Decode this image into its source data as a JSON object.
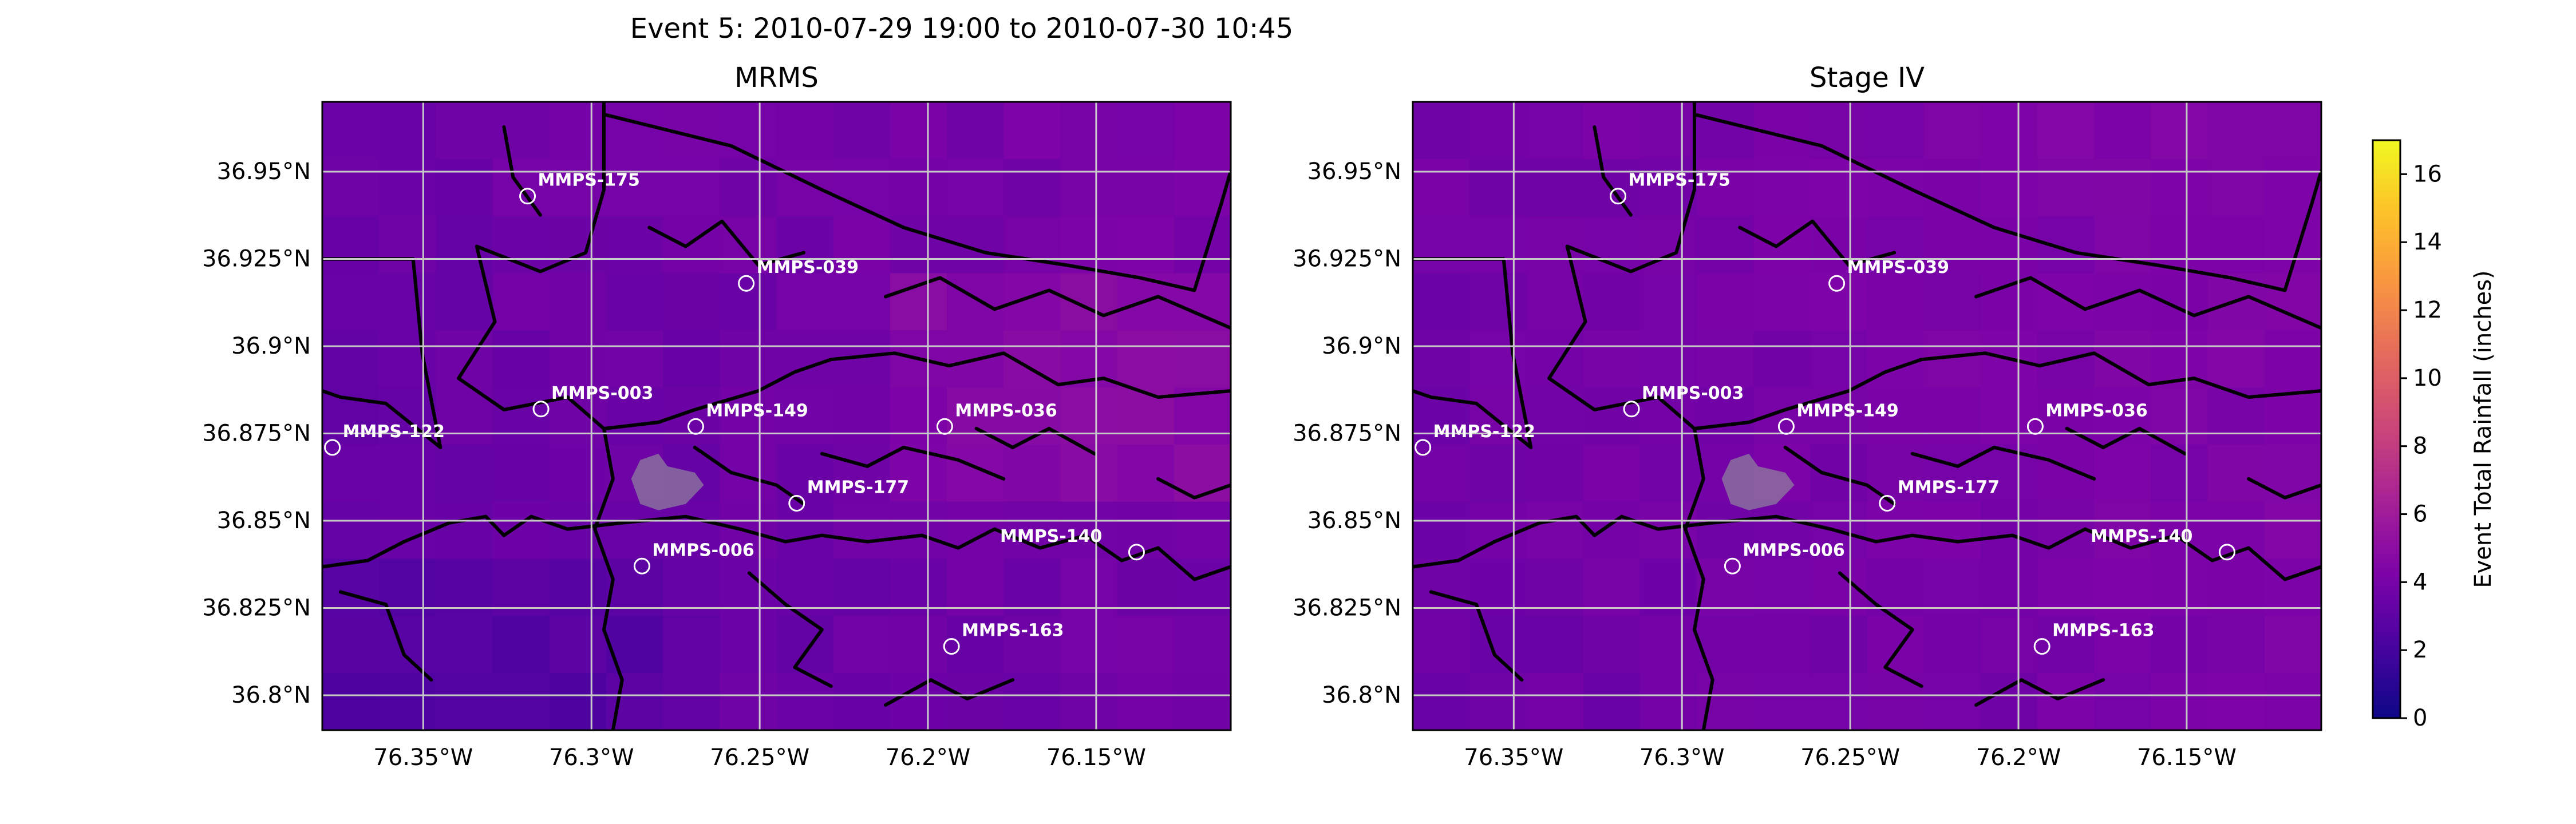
{
  "figure": {
    "title": "Event 5: 2010-07-29 19:00 to 2010-07-30 10:45"
  },
  "map": {
    "lon_range": [
      -76.38,
      -76.11
    ],
    "lat_range": [
      36.79,
      36.97
    ],
    "gridlines": true,
    "x_ticks": [
      {
        "value": -76.35,
        "label": "76.35°W"
      },
      {
        "value": -76.3,
        "label": "76.3°W"
      },
      {
        "value": -76.25,
        "label": "76.25°W"
      },
      {
        "value": -76.2,
        "label": "76.2°W"
      },
      {
        "value": -76.15,
        "label": "76.15°W"
      }
    ],
    "y_ticks": [
      {
        "value": 36.95,
        "label": "36.95°N"
      },
      {
        "value": 36.925,
        "label": "36.925°N"
      },
      {
        "value": 36.9,
        "label": "36.9°N"
      },
      {
        "value": 36.875,
        "label": "36.875°N"
      },
      {
        "value": 36.85,
        "label": "36.85°N"
      },
      {
        "value": 36.825,
        "label": "36.825°N"
      },
      {
        "value": 36.8,
        "label": "36.8°N"
      }
    ]
  },
  "panels": [
    {
      "title": "MRMS",
      "background_inches": 3.6
    },
    {
      "title": "Stage IV",
      "background_inches": 3.9
    }
  ],
  "gauges": [
    {
      "label": "MMPS-175",
      "lon": -76.319,
      "lat": 36.943,
      "label_side": "right"
    },
    {
      "label": "MMPS-039",
      "lon": -76.254,
      "lat": 36.918,
      "label_side": "right"
    },
    {
      "label": "MMPS-003",
      "lon": -76.315,
      "lat": 36.882,
      "label_side": "right"
    },
    {
      "label": "MMPS-149",
      "lon": -76.269,
      "lat": 36.877,
      "label_side": "right"
    },
    {
      "label": "MMPS-036",
      "lon": -76.195,
      "lat": 36.877,
      "label_side": "right"
    },
    {
      "label": "MMPS-122",
      "lon": -76.377,
      "lat": 36.871,
      "label_side": "right"
    },
    {
      "label": "MMPS-177",
      "lon": -76.239,
      "lat": 36.855,
      "label_side": "right"
    },
    {
      "label": "MMPS-140",
      "lon": -76.138,
      "lat": 36.841,
      "label_side": "left"
    },
    {
      "label": "MMPS-006",
      "lon": -76.285,
      "lat": 36.837,
      "label_side": "right"
    },
    {
      "label": "MMPS-163",
      "lon": -76.193,
      "lat": 36.814,
      "label_side": "right"
    }
  ],
  "colorbar": {
    "label": "Event Total Rainfall (inches)",
    "colormap": "plasma",
    "min": 0,
    "max": 17,
    "ticks": [
      0,
      2,
      4,
      6,
      8,
      10,
      12,
      14,
      16
    ]
  },
  "colors": {
    "coastline": "#000000",
    "gridline": "#c8c8c8",
    "marker_edge": "#ffffff",
    "label_text": "#ffffff",
    "watershed_fill": "#8e7f9e"
  }
}
